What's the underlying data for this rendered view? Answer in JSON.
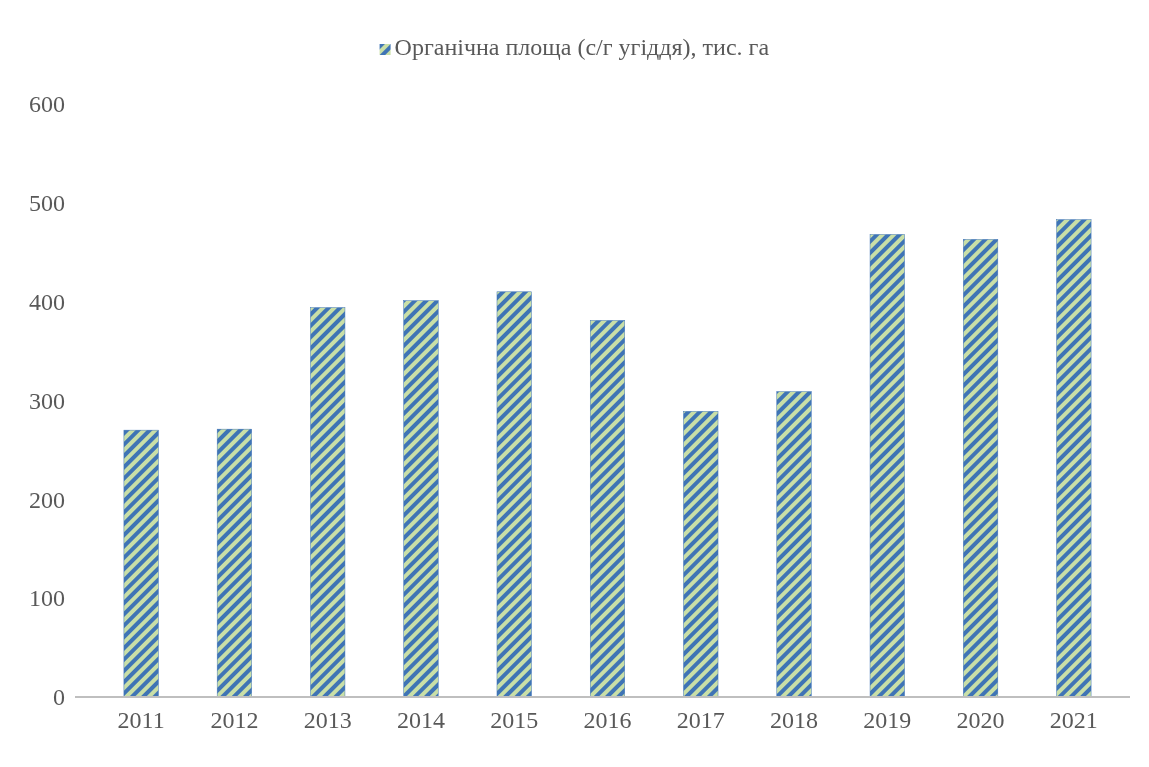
{
  "chart_data": {
    "type": "bar",
    "categories": [
      "2011",
      "2012",
      "2013",
      "2014",
      "2015",
      "2016",
      "2017",
      "2018",
      "2019",
      "2020",
      "2021"
    ],
    "series": [
      {
        "name": "Органічна площа (с/г угіддя), тис. га",
        "color": "#3f74b5",
        "values": [
          270,
          271,
          394,
          401,
          410,
          381,
          289,
          309,
          468,
          463,
          483
        ]
      }
    ],
    "ylim": [
      0,
      600
    ],
    "yticks": [
      0,
      100,
      200,
      300,
      400,
      500,
      600
    ],
    "grid": false,
    "legend": "top"
  }
}
